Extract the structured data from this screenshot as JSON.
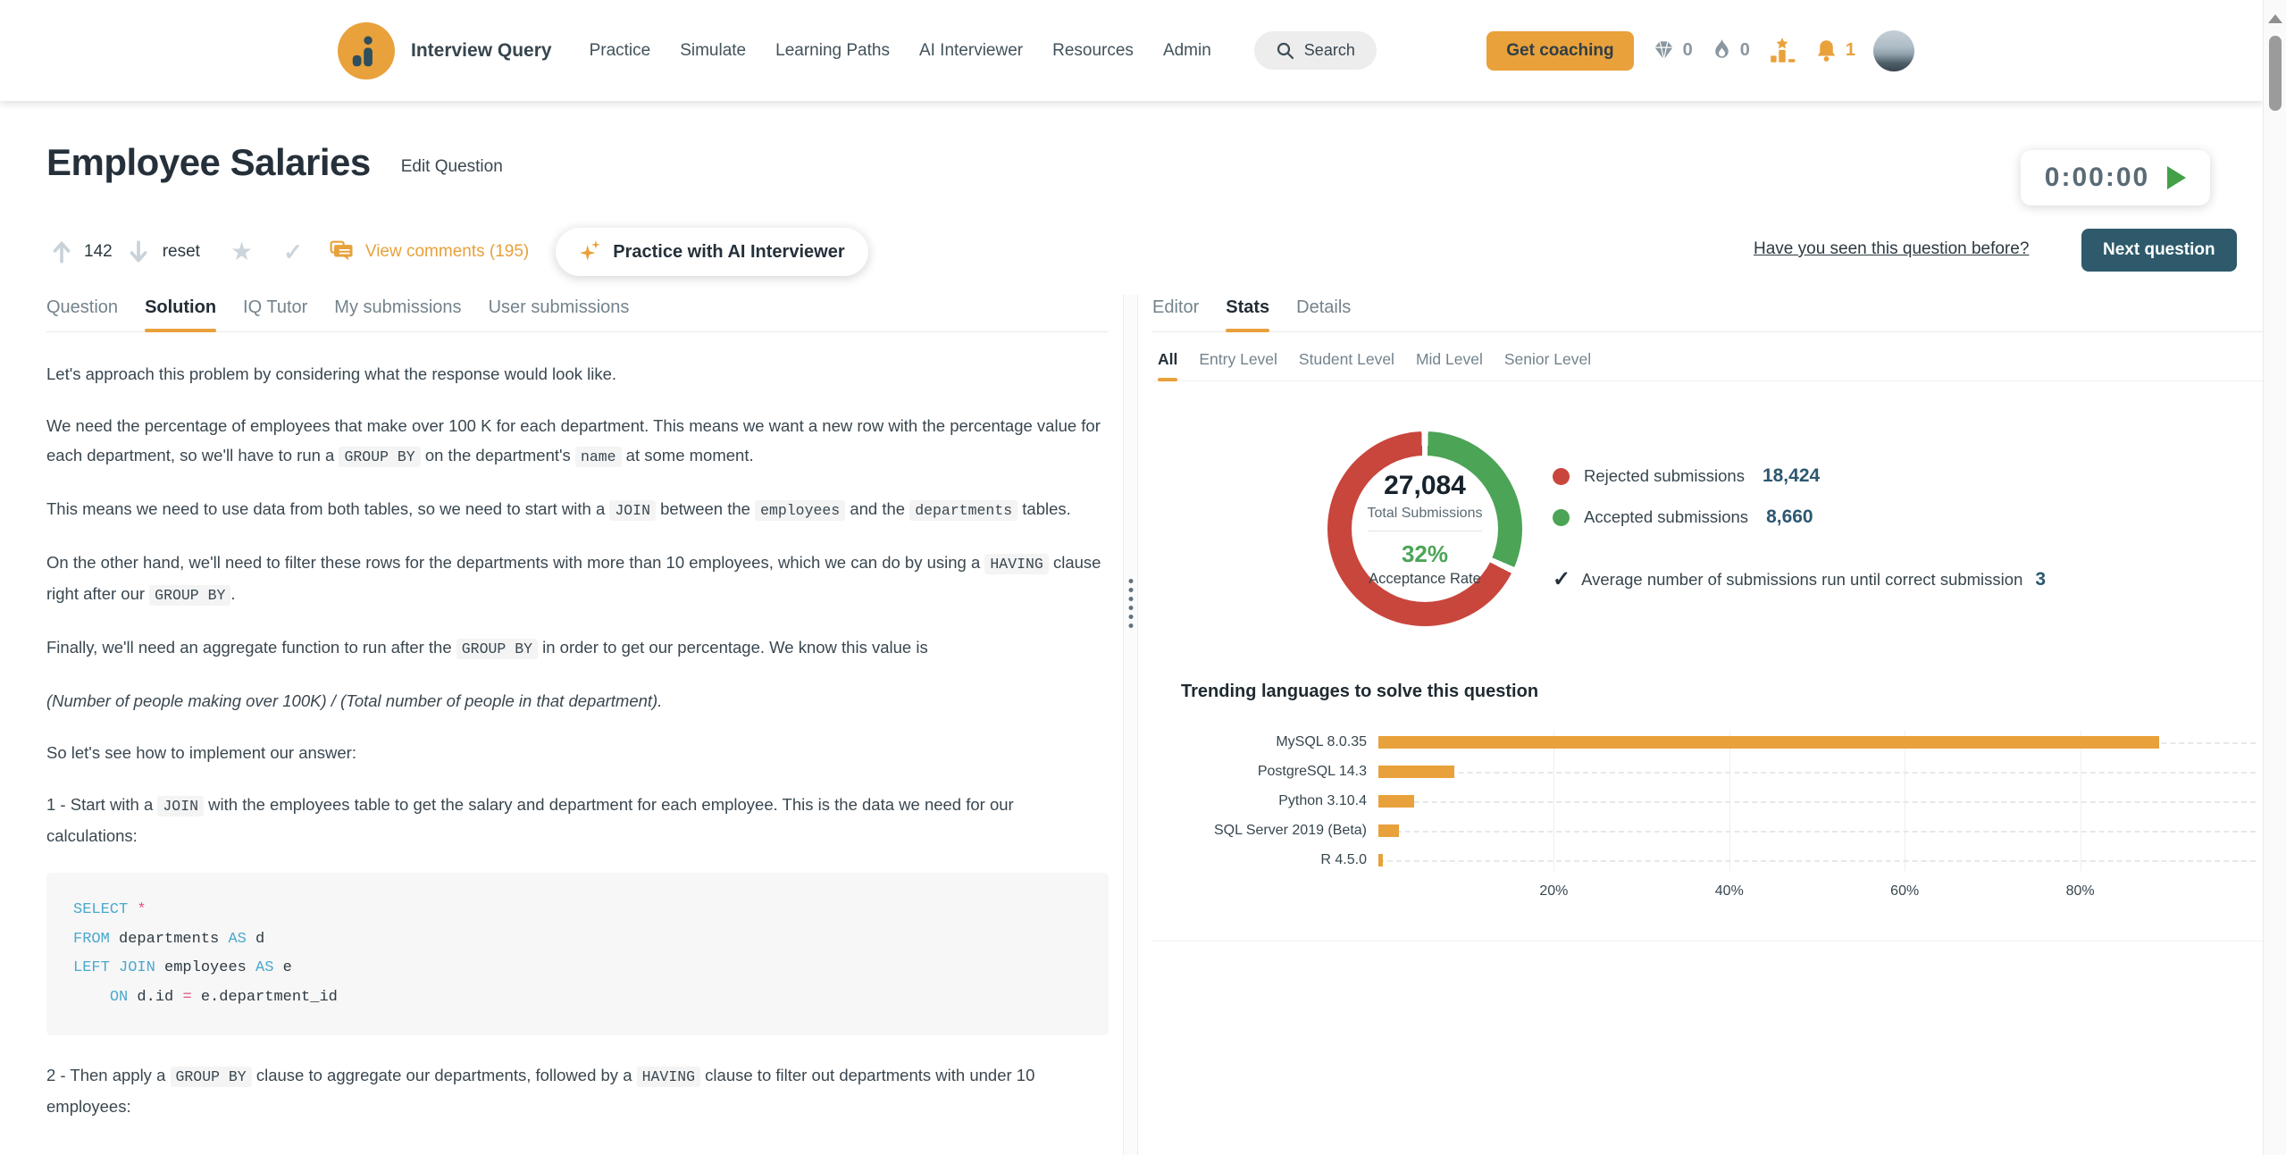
{
  "colors": {
    "accent_orange": "#E8A13B",
    "dark_teal": "#2E5A6B",
    "legend_value_blue": "#2C5870",
    "rejected_red": "#C9463D",
    "accepted_green": "#4CA457",
    "code_keyword_blue": "#4AA9CD",
    "code_operator_pink": "#E2547E"
  },
  "icons": {
    "logo": "bar-chart-dot",
    "search": "magnifier",
    "gems": "diamond",
    "streak": "flame",
    "rank": "podium-star",
    "notifications": "bell",
    "timer": "play-triangle",
    "comments": "speech-bubbles",
    "ai": "sparkles",
    "upvote": "arrow-up",
    "downvote": "arrow-down",
    "favorite": "star",
    "solved": "check"
  },
  "nav": {
    "brand": "Interview Query",
    "items": [
      "Practice",
      "Simulate",
      "Learning Paths",
      "AI Interviewer",
      "Resources",
      "Admin"
    ],
    "search_label": "Search",
    "get_coaching_label": "Get coaching",
    "gem_count": "0",
    "streak_count": "0",
    "notification_count": "1"
  },
  "header": {
    "title": "Employee Salaries",
    "edit_link": "Edit Question",
    "timer": "0:00:00"
  },
  "actions": {
    "upvotes": "142",
    "reset_label": "reset",
    "comments_label": "View comments (195)",
    "ai_interviewer_label": "Practice with AI Interviewer",
    "seen_before_label": "Have you seen this question before?",
    "next_question_label": "Next question"
  },
  "left_tabs": [
    {
      "label": "Question",
      "active": false
    },
    {
      "label": "Solution",
      "active": true
    },
    {
      "label": "IQ Tutor",
      "active": false
    },
    {
      "label": "My submissions",
      "active": false
    },
    {
      "label": "User submissions",
      "active": false
    }
  ],
  "solution": {
    "blocks": [
      {
        "type": "p",
        "segments": [
          {
            "text": "Let's approach this problem by considering what the response would look like."
          }
        ]
      },
      {
        "type": "p",
        "segments": [
          {
            "text": "We need the percentage of employees that make over 100 K for each department. This means we want a new row with the percentage value for each department, so we'll have to run a "
          },
          {
            "text": "GROUP BY",
            "code": true
          },
          {
            "text": " on the department's "
          },
          {
            "text": "name",
            "code": true
          },
          {
            "text": " at some moment."
          }
        ]
      },
      {
        "type": "p",
        "segments": [
          {
            "text": "This means we need to use data from both tables, so we need to start with a "
          },
          {
            "text": "JOIN",
            "code": true
          },
          {
            "text": " between the "
          },
          {
            "text": "employees",
            "code": true
          },
          {
            "text": " and the "
          },
          {
            "text": "departments",
            "code": true
          },
          {
            "text": " tables."
          }
        ]
      },
      {
        "type": "p",
        "segments": [
          {
            "text": "On the other hand, we'll need to filter these rows for the departments with more than 10 employees, which we can do by using a "
          },
          {
            "text": "HAVING",
            "code": true
          },
          {
            "text": " clause right after our "
          },
          {
            "text": "GROUP BY",
            "code": true
          },
          {
            "text": "."
          }
        ]
      },
      {
        "type": "p",
        "segments": [
          {
            "text": "Finally, we'll need an aggregate function to run after the "
          },
          {
            "text": "GROUP BY",
            "code": true
          },
          {
            "text": " in order to get our percentage. We know this value is"
          }
        ]
      },
      {
        "type": "italic",
        "segments": [
          {
            "text": "(Number of people making over 100K) / (Total number of people in that department)."
          }
        ]
      },
      {
        "type": "p",
        "segments": [
          {
            "text": "So let's see how to implement our answer:"
          }
        ]
      },
      {
        "type": "p",
        "segments": [
          {
            "text": "1 - Start with a "
          },
          {
            "text": "JOIN",
            "code": true
          },
          {
            "text": " with the employees table to get the salary and department for each employee. This is the data we need for our calculations:"
          }
        ]
      },
      {
        "type": "code",
        "lines": [
          [
            {
              "t": "SELECT",
              "k": "kw"
            },
            {
              "t": " ",
              "k": "pl"
            },
            {
              "t": "*",
              "k": "op"
            }
          ],
          [
            {
              "t": "FROM",
              "k": "kw"
            },
            {
              "t": " departments ",
              "k": "pl"
            },
            {
              "t": "AS",
              "k": "kw"
            },
            {
              "t": " d",
              "k": "pl"
            }
          ],
          [
            {
              "t": "LEFT JOIN",
              "k": "kw"
            },
            {
              "t": " employees ",
              "k": "pl"
            },
            {
              "t": "AS",
              "k": "kw"
            },
            {
              "t": " e",
              "k": "pl"
            }
          ],
          [
            {
              "t": "    ",
              "k": "pl"
            },
            {
              "t": "ON",
              "k": "kw"
            },
            {
              "t": " d.id ",
              "k": "pl"
            },
            {
              "t": "=",
              "k": "op"
            },
            {
              "t": " e.department_id",
              "k": "pl"
            }
          ]
        ]
      },
      {
        "type": "p",
        "segments": [
          {
            "text": "2 - Then apply a "
          },
          {
            "text": "GROUP BY",
            "code": true
          },
          {
            "text": " clause to aggregate our departments, followed by a "
          },
          {
            "text": "HAVING",
            "code": true
          },
          {
            "text": " clause to filter out departments with under 10 employees:"
          }
        ]
      }
    ]
  },
  "right_panel": {
    "tabs": [
      {
        "label": "Editor",
        "active": false
      },
      {
        "label": "Stats",
        "active": true
      },
      {
        "label": "Details",
        "active": false
      }
    ],
    "level_tabs": [
      {
        "label": "All",
        "active": true
      },
      {
        "label": "Entry Level",
        "active": false
      },
      {
        "label": "Student Level",
        "active": false
      },
      {
        "label": "Mid Level",
        "active": false
      },
      {
        "label": "Senior Level",
        "active": false
      }
    ],
    "average": {
      "label": "Average number of submissions run until correct submission",
      "value": "3"
    }
  },
  "chart_data": [
    {
      "type": "pie",
      "subtype": "donut",
      "slices": [
        {
          "label": "Rejected submissions",
          "value": 18424,
          "color": "#C9463D"
        },
        {
          "label": "Accepted submissions",
          "value": 8660,
          "color": "#4CA457"
        }
      ],
      "center": {
        "total": 27084,
        "total_label": "Total Submissions",
        "acceptance_pct": 32,
        "acceptance_label": "Acceptance Rate"
      },
      "legend_position": "right"
    },
    {
      "type": "bar",
      "orientation": "horizontal",
      "title": "Trending languages to solve this question",
      "categories": [
        "MySQL 8.0.35",
        "PostgreSQL 14.3",
        "Python 3.10.4",
        "SQL Server 2019 (Beta)",
        "R 4.5.0"
      ],
      "values": [
        89,
        8.7,
        4.1,
        2.3,
        0.5
      ],
      "unit": "%",
      "xticks": [
        20,
        40,
        60,
        80
      ],
      "xmax": 100,
      "bar_color": "#E8A13B",
      "grid": true
    }
  ]
}
